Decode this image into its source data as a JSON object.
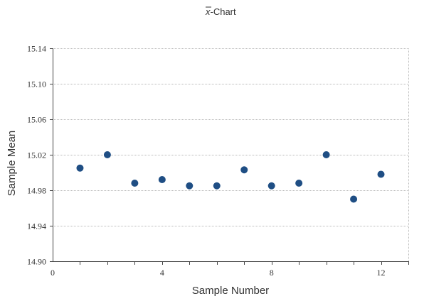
{
  "chart_data": {
    "type": "scatter",
    "title_prefix": "x",
    "title": "-Chart",
    "xlabel": "Sample Number",
    "ylabel": "Sample Mean",
    "xlim": [
      0,
      13
    ],
    "ylim": [
      14.9,
      15.14
    ],
    "x_ticks": [
      0,
      4,
      8,
      12
    ],
    "x_minor_ticks": [
      1,
      2,
      3,
      4,
      5,
      6,
      7,
      8,
      9,
      10,
      11,
      12,
      13
    ],
    "y_ticks": [
      "14.90",
      "14.94",
      "14.98",
      "15.02",
      "15.06",
      "15.10",
      "15.14"
    ],
    "grid": true,
    "point_color": "#1f4e84",
    "series": [
      {
        "x": [
          1,
          2,
          3,
          4,
          5,
          6,
          7,
          8,
          9,
          10,
          11,
          12
        ],
        "y": [
          15.005,
          15.02,
          14.988,
          14.992,
          14.985,
          14.985,
          15.003,
          14.985,
          14.988,
          15.02,
          14.97,
          14.998
        ]
      }
    ]
  }
}
